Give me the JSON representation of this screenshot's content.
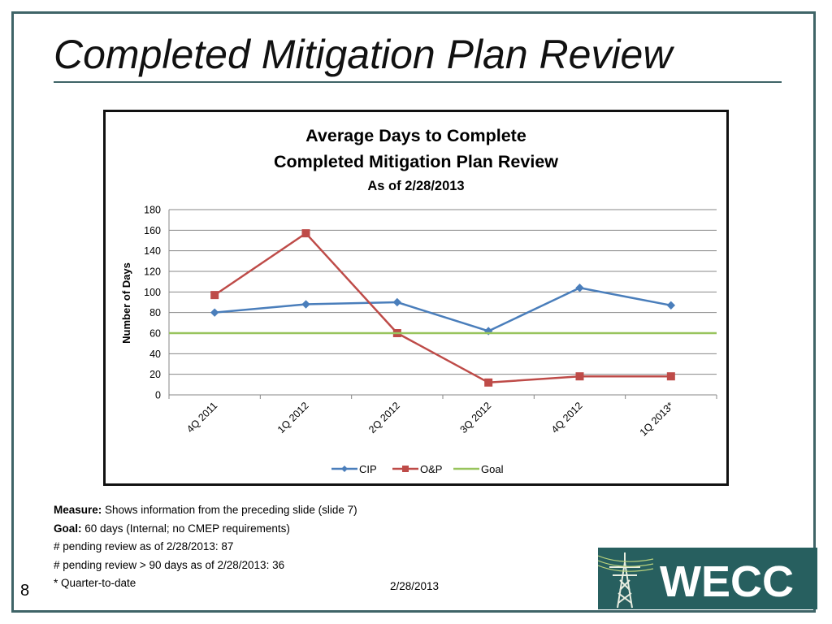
{
  "slide": {
    "title": "Completed Mitigation Plan Review",
    "number": "8",
    "footer_date": "2/28/2013"
  },
  "notes": {
    "measure_label": "Measure:",
    "measure_text": " Shows information from the preceding slide (slide 7)",
    "goal_label": "Goal:",
    "goal_text": " 60 days (Internal; no CMEP requirements)",
    "line3": "# pending review as of 2/28/2013: 87",
    "line4": "# pending review > 90 days as of 2/28/2013: 36",
    "line5": "* Quarter-to-date"
  },
  "logo": {
    "text": "WECC",
    "icon": "transmission-tower-icon"
  },
  "colors": {
    "frame": "#3f6467",
    "cip": "#4a7ebb",
    "op": "#be4b48",
    "goal": "#98c45d",
    "logo_bg": "#275f5f"
  },
  "chart_data": {
    "type": "line",
    "title": "Average Days to Complete",
    "title_line2": "Completed Mitigation Plan Review",
    "subtitle": "As of 2/28/2013",
    "ylabel": "Number of Days",
    "xlabel": "",
    "ylim": [
      0,
      180
    ],
    "yticks": [
      0,
      20,
      40,
      60,
      80,
      100,
      120,
      140,
      160,
      180
    ],
    "grid": true,
    "legend_position": "bottom",
    "categories": [
      "4Q 2011",
      "1Q 2012",
      "2Q 2012",
      "3Q 2012",
      "4Q 2012",
      "1Q 2013*"
    ],
    "series": [
      {
        "name": "CIP",
        "marker": "diamond",
        "color": "#4a7ebb",
        "values": [
          80,
          88,
          90,
          62,
          104,
          87
        ]
      },
      {
        "name": "O&P",
        "marker": "square",
        "color": "#be4b48",
        "values": [
          97,
          157,
          60,
          12,
          18,
          18
        ]
      },
      {
        "name": "Goal",
        "marker": "none",
        "color": "#98c45d",
        "values": [
          60,
          60,
          60,
          60,
          60,
          60
        ]
      }
    ]
  }
}
